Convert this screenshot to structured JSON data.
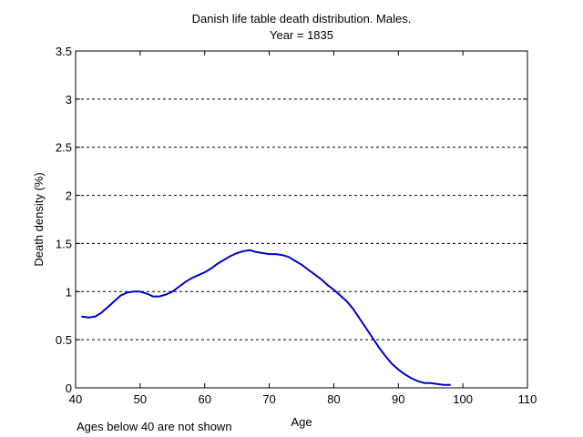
{
  "chart_data": {
    "type": "line",
    "title": [
      "Danish life table death distribution. Males.",
      "Year = 1835"
    ],
    "xlabel": "Age",
    "ylabel": "Death density (%)",
    "footnote": "Ages below 40 are not shown",
    "xlim": [
      40,
      110
    ],
    "ylim": [
      0,
      3.5
    ],
    "xticks": [
      40,
      50,
      60,
      70,
      80,
      90,
      100,
      110
    ],
    "yticks": [
      0,
      0.5,
      1,
      1.5,
      2,
      2.5,
      3,
      3.5
    ],
    "xtick_labels": [
      "40",
      "50",
      "60",
      "70",
      "80",
      "90",
      "100",
      "110"
    ],
    "ytick_labels": [
      "0",
      "0.5",
      "1",
      "1.5",
      "2",
      "2.5",
      "3",
      "3.5"
    ],
    "grid": "y-dashed",
    "series": [
      {
        "color": "#0000cc",
        "x": [
          41,
          42,
          43,
          44,
          45,
          46,
          47,
          48,
          49,
          50,
          51,
          52,
          53,
          54,
          55,
          56,
          57,
          58,
          59,
          60,
          61,
          62,
          63,
          64,
          65,
          66,
          67,
          68,
          69,
          70,
          71,
          72,
          73,
          74,
          75,
          76,
          77,
          78,
          79,
          80,
          81,
          82,
          83,
          84,
          85,
          86,
          87,
          88,
          89,
          90,
          91,
          92,
          93,
          94,
          95,
          96,
          97,
          98
        ],
        "y": [
          0.74,
          0.73,
          0.74,
          0.78,
          0.84,
          0.9,
          0.96,
          0.99,
          1.0,
          1.0,
          0.98,
          0.95,
          0.95,
          0.97,
          1.0,
          1.05,
          1.1,
          1.14,
          1.17,
          1.2,
          1.24,
          1.29,
          1.33,
          1.37,
          1.4,
          1.42,
          1.43,
          1.41,
          1.4,
          1.39,
          1.39,
          1.38,
          1.36,
          1.32,
          1.28,
          1.23,
          1.18,
          1.13,
          1.07,
          1.02,
          0.96,
          0.9,
          0.82,
          0.72,
          0.62,
          0.52,
          0.42,
          0.33,
          0.25,
          0.19,
          0.14,
          0.1,
          0.07,
          0.05,
          0.05,
          0.04,
          0.03,
          0.03
        ]
      }
    ]
  }
}
